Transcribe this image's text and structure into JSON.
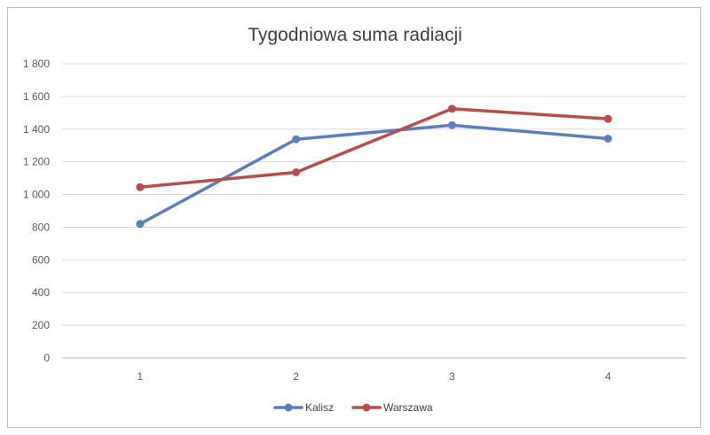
{
  "chart_data": {
    "type": "line",
    "title": "Tygodniowa suma radiacji",
    "xlabel": "",
    "ylabel": "",
    "categories": [
      "1",
      "2",
      "3",
      "4"
    ],
    "ylim": [
      0,
      1800
    ],
    "yticks": [
      0,
      200,
      400,
      600,
      800,
      1000,
      1200,
      1400,
      1600,
      1800
    ],
    "ytick_labels": [
      "0",
      "200",
      "400",
      "600",
      "800",
      "1 000",
      "1 200",
      "1 400",
      "1 600",
      "1 800"
    ],
    "grid": true,
    "legend_position": "bottom",
    "series": [
      {
        "name": "Kalisz",
        "color": "#5b7fbe",
        "values": [
          820,
          1338,
          1424,
          1342
        ]
      },
      {
        "name": "Warszawa",
        "color": "#b64f4c",
        "values": [
          1045,
          1136,
          1525,
          1463
        ]
      }
    ]
  }
}
